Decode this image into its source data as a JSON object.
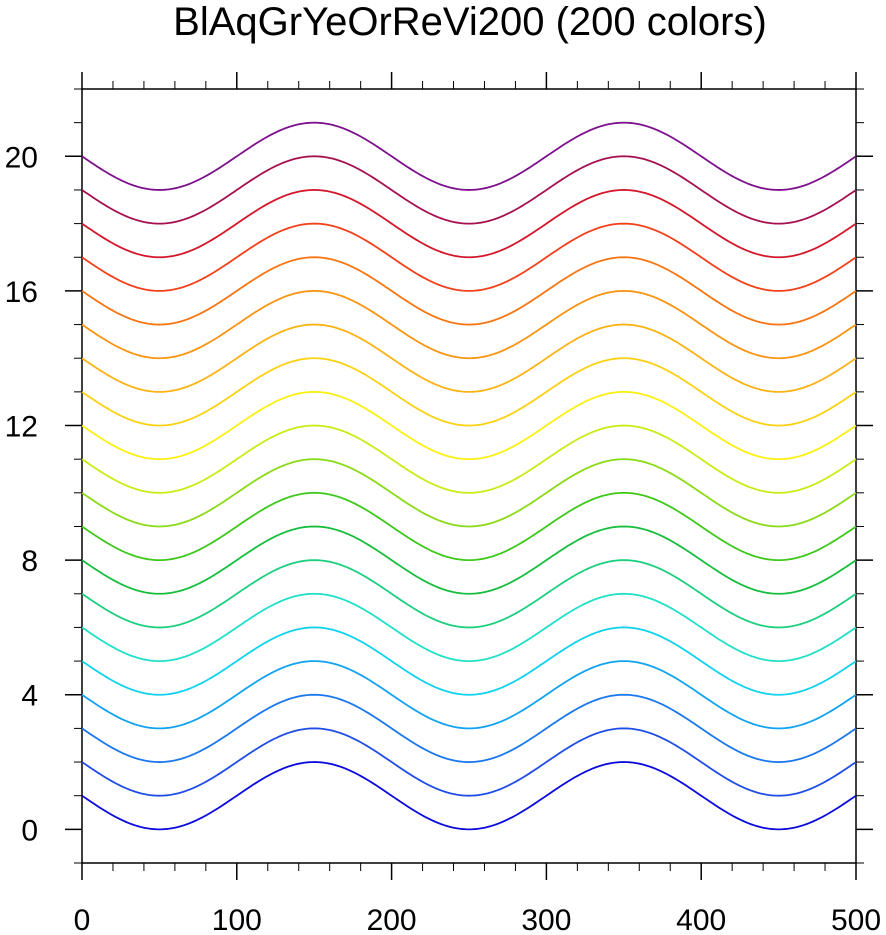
{
  "chart_data": {
    "type": "line",
    "title": "BlAqGrYeOrReVi200 (200 colors)",
    "xlabel": "",
    "ylabel": "",
    "xlim": [
      0,
      500
    ],
    "ylim": [
      -1,
      22
    ],
    "x_ticks": [
      0,
      100,
      200,
      300,
      400,
      500
    ],
    "y_ticks": [
      0,
      4,
      8,
      12,
      16,
      20
    ],
    "x_tick_labels": [
      "0",
      "100",
      "200",
      "300",
      "400",
      "500"
    ],
    "y_tick_labels": [
      "0",
      "4",
      "8",
      "12",
      "16",
      "20"
    ],
    "grid": false,
    "legend": "none",
    "series_formula": "y = offset + sin(2*pi*(x - 100)/200) + 1; curve k has offset k, k = 0..19",
    "series": [
      {
        "offset": 0,
        "color": "#0a0add"
      },
      {
        "offset": 1,
        "color": "#1f4de6"
      },
      {
        "offset": 2,
        "color": "#1a78ee"
      },
      {
        "offset": 3,
        "color": "#12a3f0"
      },
      {
        "offset": 4,
        "color": "#10d2ee"
      },
      {
        "offset": 5,
        "color": "#20e0c8"
      },
      {
        "offset": 6,
        "color": "#1ccf7f"
      },
      {
        "offset": 7,
        "color": "#17be3e"
      },
      {
        "offset": 8,
        "color": "#3ec81b"
      },
      {
        "offset": 9,
        "color": "#8ada16"
      },
      {
        "offset": 10,
        "color": "#c8ec14"
      },
      {
        "offset": 11,
        "color": "#fbf012"
      },
      {
        "offset": 12,
        "color": "#fbd112"
      },
      {
        "offset": 13,
        "color": "#fbb314"
      },
      {
        "offset": 14,
        "color": "#fa9411"
      },
      {
        "offset": 15,
        "color": "#f87512"
      },
      {
        "offset": 16,
        "color": "#f2401a"
      },
      {
        "offset": 17,
        "color": "#d4162a"
      },
      {
        "offset": 18,
        "color": "#a51150"
      },
      {
        "offset": 19,
        "color": "#7d108c"
      }
    ]
  }
}
